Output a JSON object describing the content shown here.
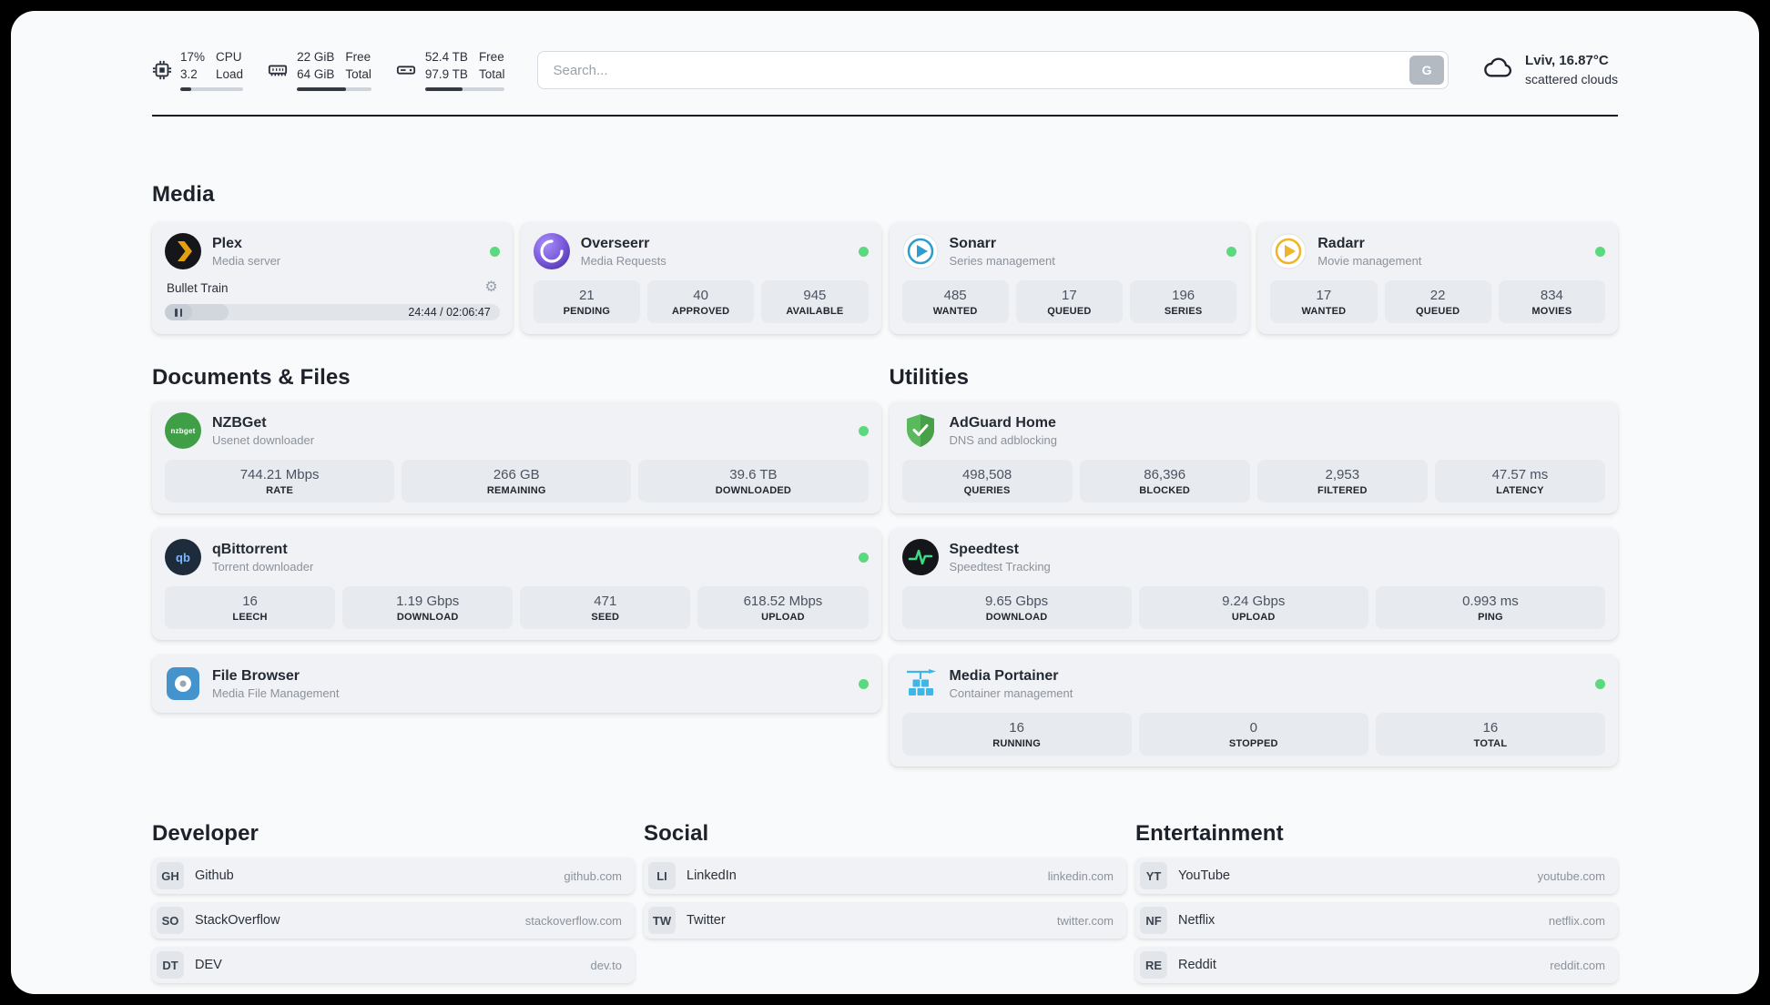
{
  "icons": {
    "gear": "⚙"
  },
  "header": {
    "cpu": {
      "value": "17%",
      "sub": "3.2",
      "label_top": "CPU",
      "label_bottom": "Load",
      "progress": 17
    },
    "ram": {
      "value": "22 GiB",
      "sub": "64 GiB",
      "label_top": "Free",
      "label_bottom": "Total",
      "progress": 66
    },
    "disk": {
      "value": "52.4 TB",
      "sub": "97.9 TB",
      "label_top": "Free",
      "label_bottom": "Total",
      "progress": 47
    },
    "search": {
      "placeholder": "Search...",
      "engine_label": "G"
    },
    "weather": {
      "location": "Lviv, 16.87°C",
      "condition": "scattered clouds"
    }
  },
  "media": {
    "title": "Media",
    "plex": {
      "name": "Plex",
      "desc": "Media server",
      "track": "Bullet Train",
      "time": "24:44 / 02:06:47",
      "progress": 19
    },
    "overseerr": {
      "name": "Overseerr",
      "desc": "Media Requests",
      "stats": [
        {
          "value": "21",
          "label": "PENDING"
        },
        {
          "value": "40",
          "label": "APPROVED"
        },
        {
          "value": "945",
          "label": "AVAILABLE"
        }
      ]
    },
    "sonarr": {
      "name": "Sonarr",
      "desc": "Series management",
      "stats": [
        {
          "value": "485",
          "label": "WANTED"
        },
        {
          "value": "17",
          "label": "QUEUED"
        },
        {
          "value": "196",
          "label": "SERIES"
        }
      ]
    },
    "radarr": {
      "name": "Radarr",
      "desc": "Movie management",
      "stats": [
        {
          "value": "17",
          "label": "WANTED"
        },
        {
          "value": "22",
          "label": "QUEUED"
        },
        {
          "value": "834",
          "label": "MOVIES"
        }
      ]
    }
  },
  "documents": {
    "title": "Documents & Files",
    "nzbget": {
      "name": "NZBGet",
      "desc": "Usenet downloader",
      "icon_text": "nzbget",
      "stats": [
        {
          "value": "744.21 Mbps",
          "label": "RATE"
        },
        {
          "value": "266 GB",
          "label": "REMAINING"
        },
        {
          "value": "39.6 TB",
          "label": "DOWNLOADED"
        }
      ]
    },
    "qbittorrent": {
      "name": "qBittorrent",
      "desc": "Torrent downloader",
      "icon_text": "qb",
      "stats": [
        {
          "value": "16",
          "label": "LEECH"
        },
        {
          "value": "1.19 Gbps",
          "label": "DOWNLOAD"
        },
        {
          "value": "471",
          "label": "SEED"
        },
        {
          "value": "618.52 Mbps",
          "label": "UPLOAD"
        }
      ]
    },
    "filebrowser": {
      "name": "File Browser",
      "desc": "Media File Management"
    }
  },
  "utilities": {
    "title": "Utilities",
    "adguard": {
      "name": "AdGuard Home",
      "desc": "DNS and adblocking",
      "stats": [
        {
          "value": "498,508",
          "label": "QUERIES"
        },
        {
          "value": "86,396",
          "label": "BLOCKED"
        },
        {
          "value": "2,953",
          "label": "FILTERED"
        },
        {
          "value": "47.57 ms",
          "label": "LATENCY"
        }
      ]
    },
    "speedtest": {
      "name": "Speedtest",
      "desc": "Speedtest Tracking",
      "stats": [
        {
          "value": "9.65 Gbps",
          "label": "DOWNLOAD"
        },
        {
          "value": "9.24 Gbps",
          "label": "UPLOAD"
        },
        {
          "value": "0.993 ms",
          "label": "PING"
        }
      ]
    },
    "portainer": {
      "name": "Media Portainer",
      "desc": "Container management",
      "stats": [
        {
          "value": "16",
          "label": "RUNNING"
        },
        {
          "value": "0",
          "label": "STOPPED"
        },
        {
          "value": "16",
          "label": "TOTAL"
        }
      ]
    }
  },
  "bookmarks": {
    "developer": {
      "title": "Developer",
      "items": [
        {
          "abbr": "GH",
          "name": "Github",
          "url": "github.com"
        },
        {
          "abbr": "SO",
          "name": "StackOverflow",
          "url": "stackoverflow.com"
        },
        {
          "abbr": "DT",
          "name": "DEV",
          "url": "dev.to"
        }
      ]
    },
    "social": {
      "title": "Social",
      "items": [
        {
          "abbr": "LI",
          "name": "LinkedIn",
          "url": "linkedin.com"
        },
        {
          "abbr": "TW",
          "name": "Twitter",
          "url": "twitter.com"
        }
      ]
    },
    "entertainment": {
      "title": "Entertainment",
      "items": [
        {
          "abbr": "YT",
          "name": "YouTube",
          "url": "youtube.com"
        },
        {
          "abbr": "NF",
          "name": "Netflix",
          "url": "netflix.com"
        },
        {
          "abbr": "RE",
          "name": "Reddit",
          "url": "reddit.com"
        }
      ]
    }
  },
  "colors": {
    "accent_green": "#5cd97f",
    "panel_bg": "#f9fafb",
    "card_bg": "#f0f2f5",
    "stat_bg": "#e7eaee"
  }
}
